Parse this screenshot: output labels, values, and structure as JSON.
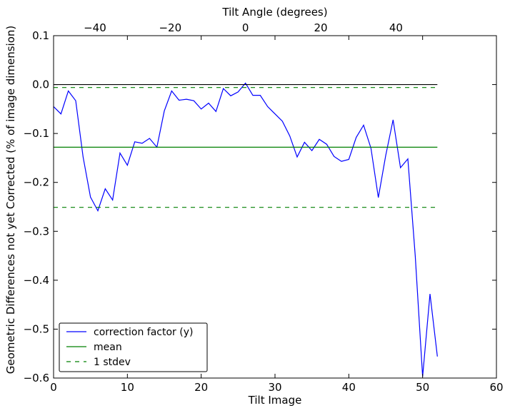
{
  "chart_data": {
    "type": "line",
    "xlabel": "Tilt Image",
    "ylabel": "Geometric Differences not yet Corrected (% of image dimension)",
    "top_xlabel": "Tilt Angle (degrees)",
    "xlim": [
      0,
      60
    ],
    "ylim": [
      -0.6,
      0.1
    ],
    "x_ticks": [
      0,
      10,
      20,
      30,
      40,
      50,
      60
    ],
    "y_ticks": [
      -0.6,
      -0.5,
      -0.4,
      -0.3,
      -0.2,
      -0.1,
      0.0,
      0.1
    ],
    "y_tick_labels": [
      "−0.6",
      "−0.5",
      "−0.4",
      "−0.3",
      "−0.2",
      "−0.1",
      "0.0",
      "0.1"
    ],
    "top_ticks": [
      -40,
      -20,
      0,
      20,
      40
    ],
    "top_tick_labels": [
      "−40",
      "−20",
      "0",
      "20",
      "40"
    ],
    "top_axis_map": {
      "tilt_image": [
        0,
        52
      ],
      "angle_deg": [
        -51,
        51
      ]
    },
    "grid": false,
    "legend_position": "lower-left",
    "series": [
      {
        "name": "correction factor (y)",
        "style": "solid",
        "color": "#0000ff",
        "x": [
          0,
          1,
          2,
          3,
          4,
          5,
          6,
          7,
          8,
          9,
          10,
          11,
          12,
          13,
          14,
          15,
          16,
          17,
          18,
          19,
          20,
          21,
          22,
          23,
          24,
          25,
          26,
          27,
          28,
          29,
          30,
          31,
          32,
          33,
          34,
          35,
          36,
          37,
          38,
          39,
          40,
          41,
          42,
          43,
          44,
          45,
          46,
          47,
          48,
          49,
          50,
          51,
          52
        ],
        "y": [
          -0.045,
          -0.06,
          -0.013,
          -0.033,
          -0.148,
          -0.23,
          -0.258,
          -0.213,
          -0.236,
          -0.14,
          -0.165,
          -0.117,
          -0.12,
          -0.11,
          -0.128,
          -0.054,
          -0.013,
          -0.032,
          -0.03,
          -0.033,
          -0.05,
          -0.038,
          -0.055,
          -0.008,
          -0.023,
          -0.015,
          0.003,
          -0.022,
          -0.022,
          -0.045,
          -0.06,
          -0.075,
          -0.105,
          -0.148,
          -0.118,
          -0.135,
          -0.112,
          -0.122,
          -0.147,
          -0.157,
          -0.153,
          -0.108,
          -0.083,
          -0.13,
          -0.231,
          -0.145,
          -0.072,
          -0.17,
          -0.152,
          -0.35,
          -0.597,
          -0.428,
          -0.556
        ]
      },
      {
        "name": "mean",
        "style": "solid",
        "color": "#008000",
        "x": [
          0,
          52
        ],
        "y": [
          -0.128,
          -0.128
        ]
      },
      {
        "name": "1 stdev",
        "style": "dashed",
        "color": "#008000",
        "x": [
          0,
          52
        ],
        "y": [
          -0.006,
          -0.006
        ]
      },
      {
        "name": "1 stdev",
        "style": "dashed",
        "color": "#008000",
        "x": [
          0,
          52
        ],
        "y": [
          -0.251,
          -0.251
        ],
        "in_legend": false
      },
      {
        "name": "",
        "style": "solid",
        "color": "#000000",
        "x": [
          0,
          52
        ],
        "y": [
          0.0,
          0.0
        ],
        "in_legend": false
      }
    ]
  }
}
